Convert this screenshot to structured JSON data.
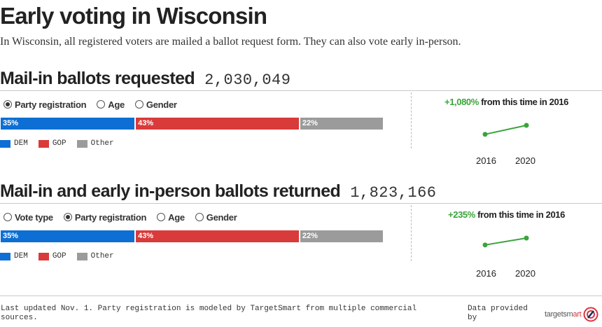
{
  "title": "Early voting in Wisconsin",
  "subtitle": "In Wisconsin, all registered voters are mailed a ballot request form. They can also vote early in-person.",
  "colors": {
    "dem": "#0d6fd4",
    "gop": "#d93a3a",
    "other": "#9b9b9b",
    "positive": "#3aa43a",
    "sparkline": "#3aa43a"
  },
  "sections": [
    {
      "title": "Mail-in ballots requested",
      "count": "2,030,049",
      "options": [
        {
          "label": "Party registration",
          "checked": true
        },
        {
          "label": "Age",
          "checked": false
        },
        {
          "label": "Gender",
          "checked": false
        }
      ],
      "bar": [
        {
          "label": "35%",
          "value": 35,
          "color_key": "dem"
        },
        {
          "label": "43%",
          "value": 43,
          "color_key": "gop"
        },
        {
          "label": "22%",
          "value": 22,
          "color_key": "other"
        }
      ],
      "legend": [
        {
          "label": "DEM",
          "color_key": "dem"
        },
        {
          "label": "GOP",
          "color_key": "gop"
        },
        {
          "label": "Other",
          "color_key": "other"
        }
      ],
      "change_pct": "+1,080%",
      "change_text": " from this time in 2016",
      "spark": {
        "years": [
          "2016",
          "2020"
        ],
        "relative_values": [
          1,
          11.8
        ]
      }
    },
    {
      "title": "Mail-in and early in-person ballots returned",
      "count": "1,823,166",
      "options": [
        {
          "label": "Vote type",
          "checked": false
        },
        {
          "label": "Party registration",
          "checked": true
        },
        {
          "label": "Age",
          "checked": false
        },
        {
          "label": "Gender",
          "checked": false
        }
      ],
      "bar": [
        {
          "label": "35%",
          "value": 35,
          "color_key": "dem"
        },
        {
          "label": "43%",
          "value": 43,
          "color_key": "gop"
        },
        {
          "label": "22%",
          "value": 22,
          "color_key": "other"
        }
      ],
      "legend": [
        {
          "label": "DEM",
          "color_key": "dem"
        },
        {
          "label": "GOP",
          "color_key": "gop"
        },
        {
          "label": "Other",
          "color_key": "other"
        }
      ],
      "change_pct": "+235%",
      "change_text": " from this time in 2016",
      "spark": {
        "years": [
          "2016",
          "2020"
        ],
        "relative_values": [
          1,
          3.35
        ]
      }
    }
  ],
  "footnote": "Last updated Nov. 1. Party registration is modeled by TargetSmart from multiple commercial sources.",
  "provided_by": "Data provided by",
  "logo": {
    "text_main": "targetsm",
    "text_accent": "art",
    "icon": "targetsmart-logo-icon"
  }
}
